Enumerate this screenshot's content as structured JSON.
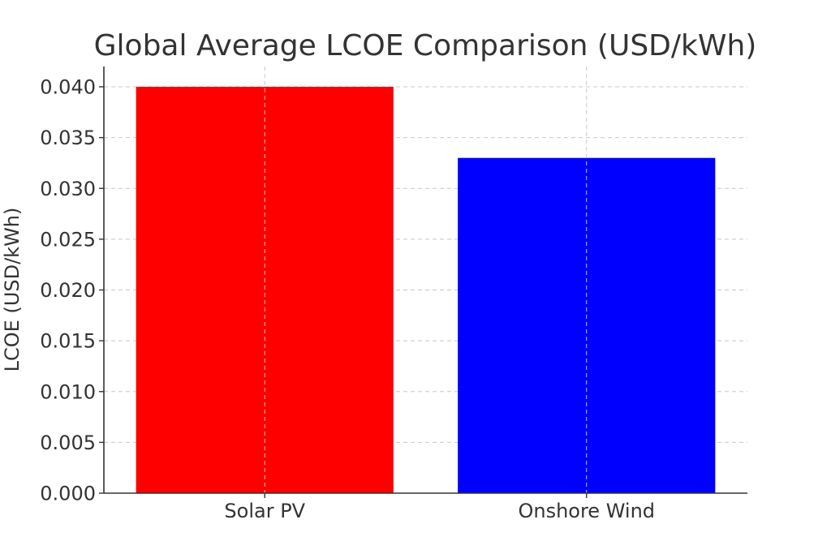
{
  "chart_data": {
    "type": "bar",
    "title": "Global Average LCOE Comparison (USD/kWh)",
    "xlabel": "",
    "ylabel": "LCOE (USD/kWh)",
    "categories": [
      "Solar PV",
      "Onshore Wind"
    ],
    "values": [
      0.04,
      0.033
    ],
    "colors": [
      "#ff0000",
      "#0000ff"
    ],
    "ylim": [
      0,
      0.04
    ],
    "yticks": [
      0.0,
      0.005,
      0.01,
      0.015,
      0.02,
      0.025,
      0.03,
      0.035,
      0.04
    ],
    "ytick_labels": [
      "0.000",
      "0.005",
      "0.010",
      "0.015",
      "0.020",
      "0.025",
      "0.030",
      "0.035",
      "0.040"
    ],
    "grid": true
  }
}
